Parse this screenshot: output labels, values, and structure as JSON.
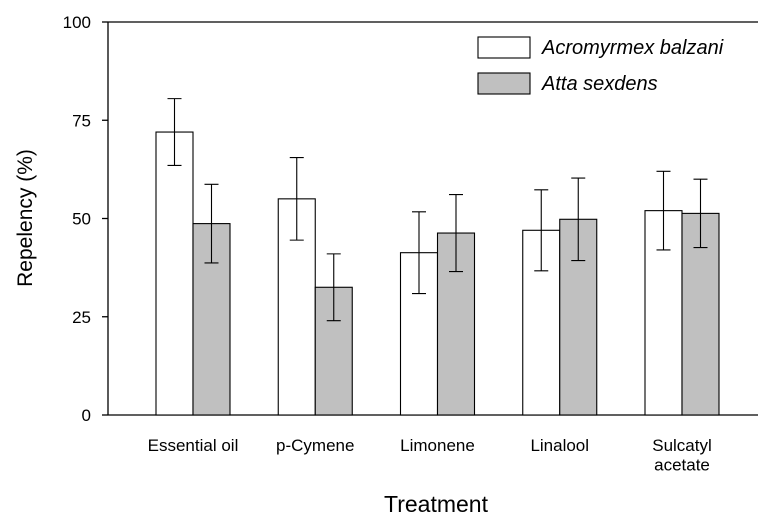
{
  "chart_data": {
    "type": "bar",
    "x_label": "Treatment",
    "y_label": "Repelency (%)",
    "categories": [
      "Essential oil",
      "p-Cymene",
      "Limonene",
      "Linalool",
      "Sulcatyl\nacetate"
    ],
    "series": [
      {
        "name": "Acromyrmex balzani",
        "color": "#ffffff",
        "values": [
          72,
          55,
          41.3,
          47,
          52
        ],
        "errors": [
          8.5,
          10.5,
          10.4,
          10.3,
          10
        ]
      },
      {
        "name": "Atta sexdens",
        "color": "#c0c0c0",
        "values": [
          48.7,
          32.5,
          46.3,
          49.8,
          51.3
        ],
        "errors": [
          10,
          8.5,
          9.8,
          10.5,
          8.7
        ]
      }
    ],
    "ylim": [
      0,
      100
    ],
    "yticks": [
      0,
      25,
      50,
      75,
      100
    ],
    "legend": "top-right"
  }
}
